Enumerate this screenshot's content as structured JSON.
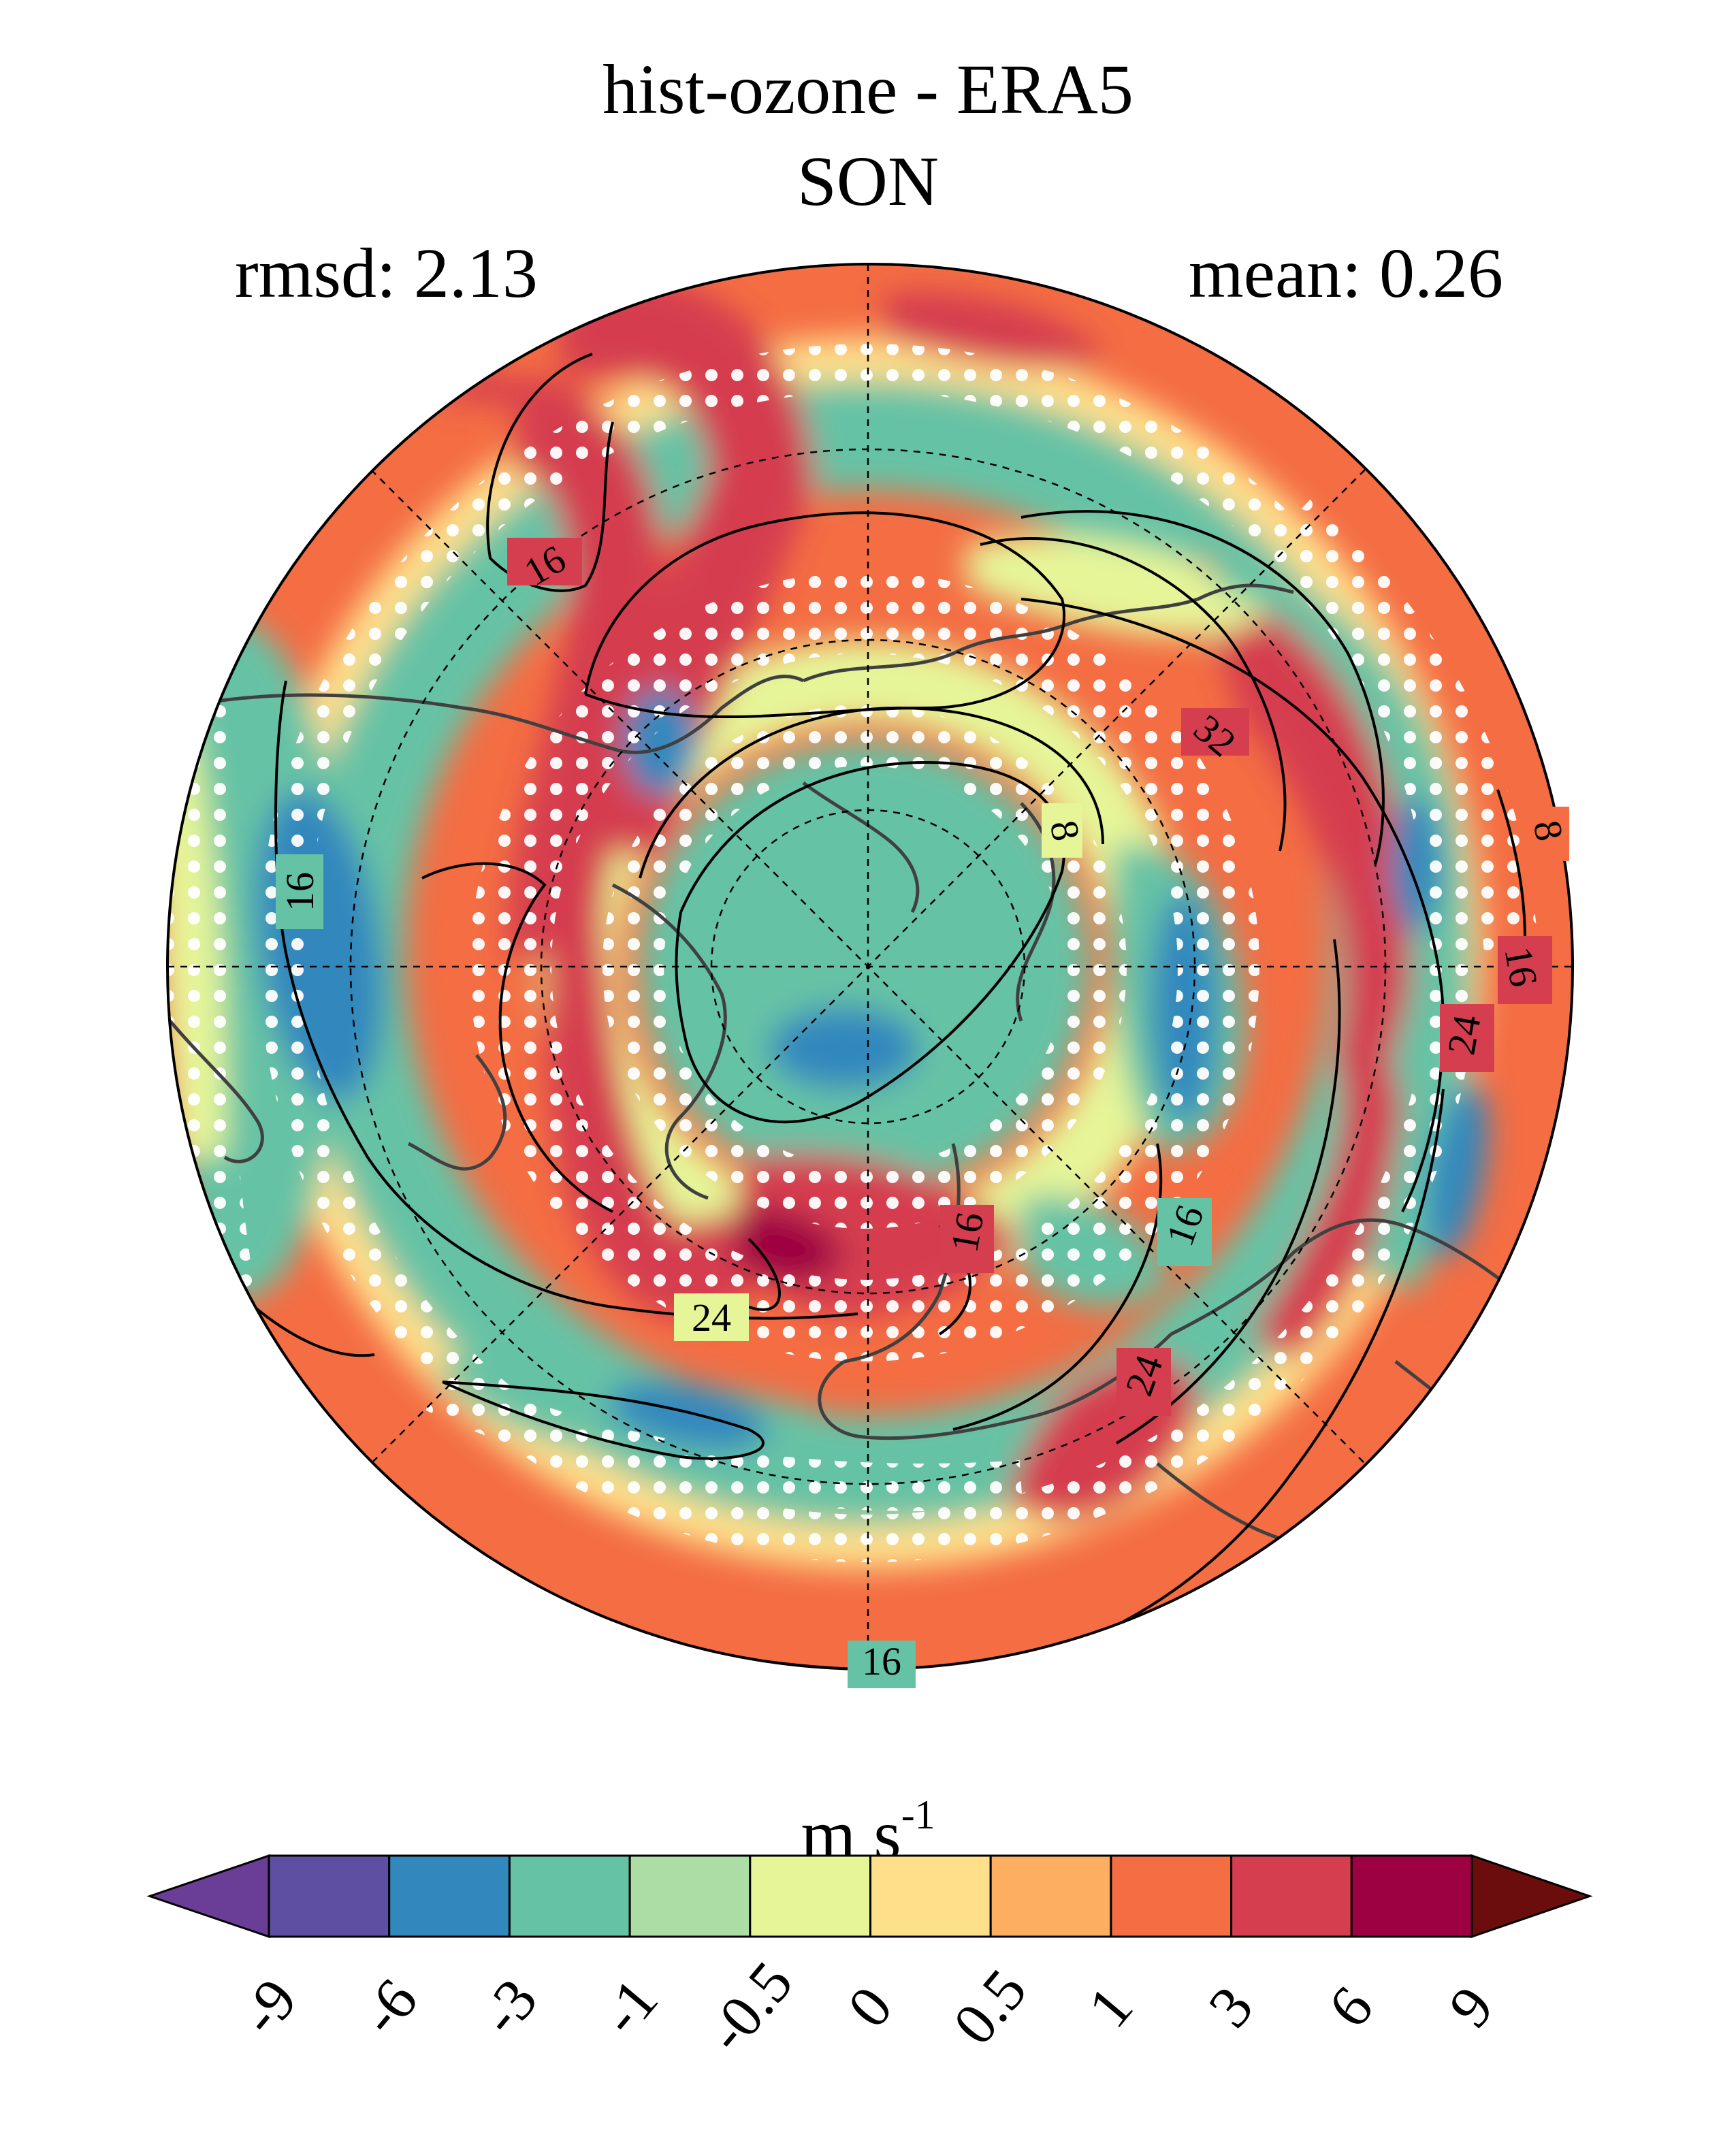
{
  "figure": {
    "title": "hist-ozone - ERA5",
    "season": "SON",
    "rmsd_text": "rmsd: 2.13",
    "mean_text": "mean: 0.26",
    "projection": "north polar stereographic",
    "stippling_color": "#ffffff",
    "coastline_color": "#404040"
  },
  "contours": {
    "color": "#000000",
    "labels": [
      "16",
      "32",
      "8",
      "8",
      "16",
      "16",
      "24",
      "16",
      "16",
      "24",
      "24",
      "16"
    ]
  },
  "colorbar": {
    "units": "m s",
    "units_exponent": "-1",
    "extend": "both",
    "levels": [
      "-9",
      "-6",
      "-3",
      "-1",
      "-0.5",
      "0",
      "0.5",
      "1",
      "3",
      "6",
      "9"
    ],
    "colors": [
      "#6a3d96",
      "#5e4fa2",
      "#3288bd",
      "#66c2a5",
      "#abdda4",
      "#e6f598",
      "#fee08b",
      "#fdae61",
      "#f46d43",
      "#d53e4f",
      "#9e0142",
      "#6b0d0d"
    ]
  }
}
